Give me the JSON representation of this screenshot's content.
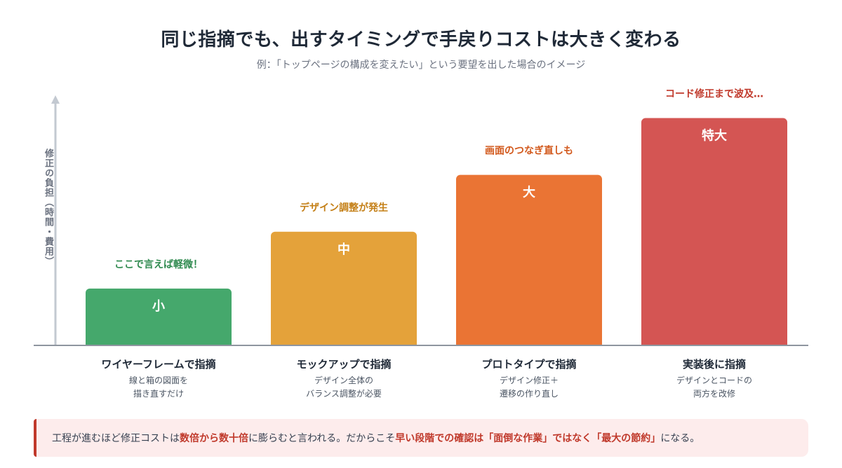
{
  "title": "同じ指摘でも、出すタイミングで手戻りコストは大きく変わる",
  "subtitle": "例：「トップページの構成を変えたい」という要望を出した場合のイメージ",
  "chart_data": {
    "type": "bar",
    "ylabel": "修正の負担（時間・費用）",
    "categories": [
      "ワイヤーフレームで指摘",
      "モックアップで指摘",
      "プロトタイプで指摘",
      "実装後に指摘"
    ],
    "category_descriptions": [
      [
        "線と箱の図面を",
        "描き直すだけ"
      ],
      [
        "デザイン全体の",
        "バランス調整が必要"
      ],
      [
        "デザイン修正＋",
        "遷移の作り直し"
      ],
      [
        "デザインとコードの",
        "両方を改修"
      ]
    ],
    "values": [
      1,
      2,
      3,
      4
    ],
    "value_labels": [
      "小",
      "中",
      "大",
      "特大"
    ],
    "annotations": [
      "ここで言えば軽微！",
      "デザイン調整が発生",
      "画面のつなぎ直しも",
      "コード修正まで波及…"
    ],
    "colors": [
      "#45a86c",
      "#e4a23a",
      "#ea7434",
      "#d45553"
    ],
    "annotation_colors": [
      "#2f8a4f",
      "#c47f16",
      "#d2581b",
      "#c0392b"
    ],
    "ylim": [
      0,
      4.5
    ],
    "grid": false
  },
  "note": {
    "segments": [
      {
        "text": "工程が進むほど修正コストは",
        "highlight": false
      },
      {
        "text": "数倍から数十倍",
        "highlight": true
      },
      {
        "text": "に膨らむと言われる。だからこそ",
        "highlight": false
      },
      {
        "text": "早い段階での確認は「面倒な作業」ではなく「最大の節約」",
        "highlight": true
      },
      {
        "text": "になる。",
        "highlight": false
      }
    ]
  }
}
